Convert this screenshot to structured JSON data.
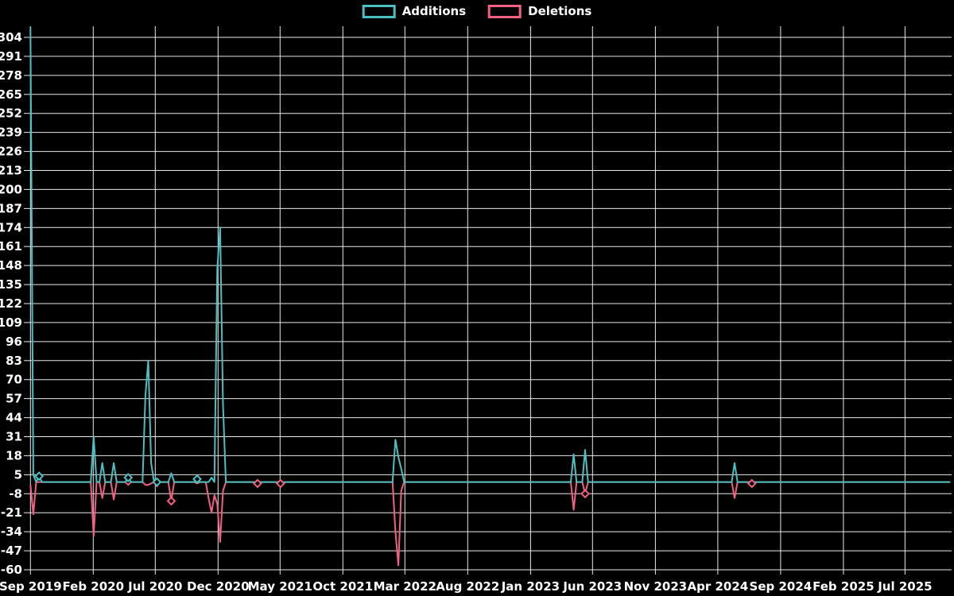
{
  "legend": {
    "position": "top",
    "items": [
      {
        "label": "Additions",
        "color": "#4cc0c0"
      },
      {
        "label": "Deletions",
        "color": "#f26082"
      }
    ]
  },
  "colors": {
    "background": "#000000",
    "grid": "#e8e8e8",
    "text": "#ffffff",
    "additions": "#4cc0c0",
    "deletions": "#f26082"
  },
  "chart_data": {
    "type": "line",
    "title": "",
    "xlabel": "",
    "ylabel": "",
    "legend_position": "top",
    "grid": true,
    "background": "black",
    "x_start": "2019-09-01",
    "x_end": "2025-10-19",
    "point_interval": "weekly",
    "baseline_value": 0,
    "ylim": [
      -60,
      311
    ],
    "y_ticks": [
      304,
      291,
      278,
      265,
      252,
      239,
      226,
      213,
      200,
      187,
      174,
      161,
      148,
      135,
      122,
      109,
      96,
      83,
      70,
      57,
      44,
      31,
      18,
      5,
      -8,
      -21,
      -34,
      -47,
      -60
    ],
    "x_ticks": [
      {
        "label": "Sep 2019",
        "date": "2019-09-01"
      },
      {
        "label": "Feb 2020",
        "date": "2020-02-01"
      },
      {
        "label": "Jul 2020",
        "date": "2020-07-01"
      },
      {
        "label": "Dec 2020",
        "date": "2020-12-01"
      },
      {
        "label": "May 2021",
        "date": "2021-05-01"
      },
      {
        "label": "Oct 2021",
        "date": "2021-10-01"
      },
      {
        "label": "Mar 2022",
        "date": "2022-03-01"
      },
      {
        "label": "Aug 2022",
        "date": "2022-08-01"
      },
      {
        "label": "Jan 2023",
        "date": "2023-01-01"
      },
      {
        "label": "Jun 2023",
        "date": "2023-06-01"
      },
      {
        "label": "Nov 2023",
        "date": "2023-11-01"
      },
      {
        "label": "Apr 2024",
        "date": "2024-04-01"
      },
      {
        "label": "Sep 2024",
        "date": "2024-09-01"
      },
      {
        "label": "Feb 2025",
        "date": "2025-02-01"
      },
      {
        "label": "Jul 2025",
        "date": "2025-07-01"
      }
    ],
    "series": [
      {
        "name": "Additions",
        "key": "a",
        "color": "#4cc0c0"
      },
      {
        "name": "Deletions",
        "key": "d",
        "color": "#f26082"
      }
    ],
    "events_note": "weekly values; all weeks not listed below are 0 for both series; first addition spike is clipped at the top of the plot",
    "events": [
      {
        "date": "2019-09-01",
        "a": 311,
        "d": -2
      },
      {
        "date": "2019-09-08",
        "a": 5,
        "d": -22
      },
      {
        "date": "2019-09-22",
        "a": 4,
        "d": 0,
        "ma": true
      },
      {
        "date": "2020-02-02",
        "a": 31,
        "d": -37
      },
      {
        "date": "2020-02-23",
        "a": 13,
        "d": -11
      },
      {
        "date": "2020-03-22",
        "a": 13,
        "d": -12
      },
      {
        "date": "2020-04-26",
        "a": 3,
        "d": -2,
        "ma": true
      },
      {
        "date": "2020-06-07",
        "a": 59,
        "d": -2
      },
      {
        "date": "2020-06-14",
        "a": 83,
        "d": -2
      },
      {
        "date": "2020-06-21",
        "a": 13,
        "d": -1
      },
      {
        "date": "2020-07-05",
        "a": 0,
        "d": -3,
        "ma": true
      },
      {
        "date": "2020-08-09",
        "a": 6,
        "d": -13,
        "md": true
      },
      {
        "date": "2020-10-11",
        "a": 2,
        "d": -1,
        "ma": true
      },
      {
        "date": "2020-11-08",
        "a": 0,
        "d": -11
      },
      {
        "date": "2020-11-15",
        "a": 3,
        "d": -21
      },
      {
        "date": "2020-11-22",
        "a": 0,
        "d": -9
      },
      {
        "date": "2020-11-29",
        "a": 146,
        "d": -15
      },
      {
        "date": "2020-12-06",
        "a": 174,
        "d": -41
      },
      {
        "date": "2020-12-13",
        "a": 53,
        "d": -6
      },
      {
        "date": "2021-03-07",
        "a": 0,
        "d": -1,
        "md": true
      },
      {
        "date": "2021-05-02",
        "a": 0,
        "d": -1,
        "md": true
      },
      {
        "date": "2022-02-06",
        "a": 29,
        "d": -34
      },
      {
        "date": "2022-02-13",
        "a": 17,
        "d": -57
      },
      {
        "date": "2022-02-20",
        "a": 9,
        "d": -6
      },
      {
        "date": "2023-04-16",
        "a": 19,
        "d": -19
      },
      {
        "date": "2023-05-14",
        "a": 22,
        "d": -8,
        "md": true
      },
      {
        "date": "2024-05-12",
        "a": 13,
        "d": -11
      },
      {
        "date": "2024-06-23",
        "a": 0,
        "d": -1,
        "md": true
      }
    ]
  }
}
